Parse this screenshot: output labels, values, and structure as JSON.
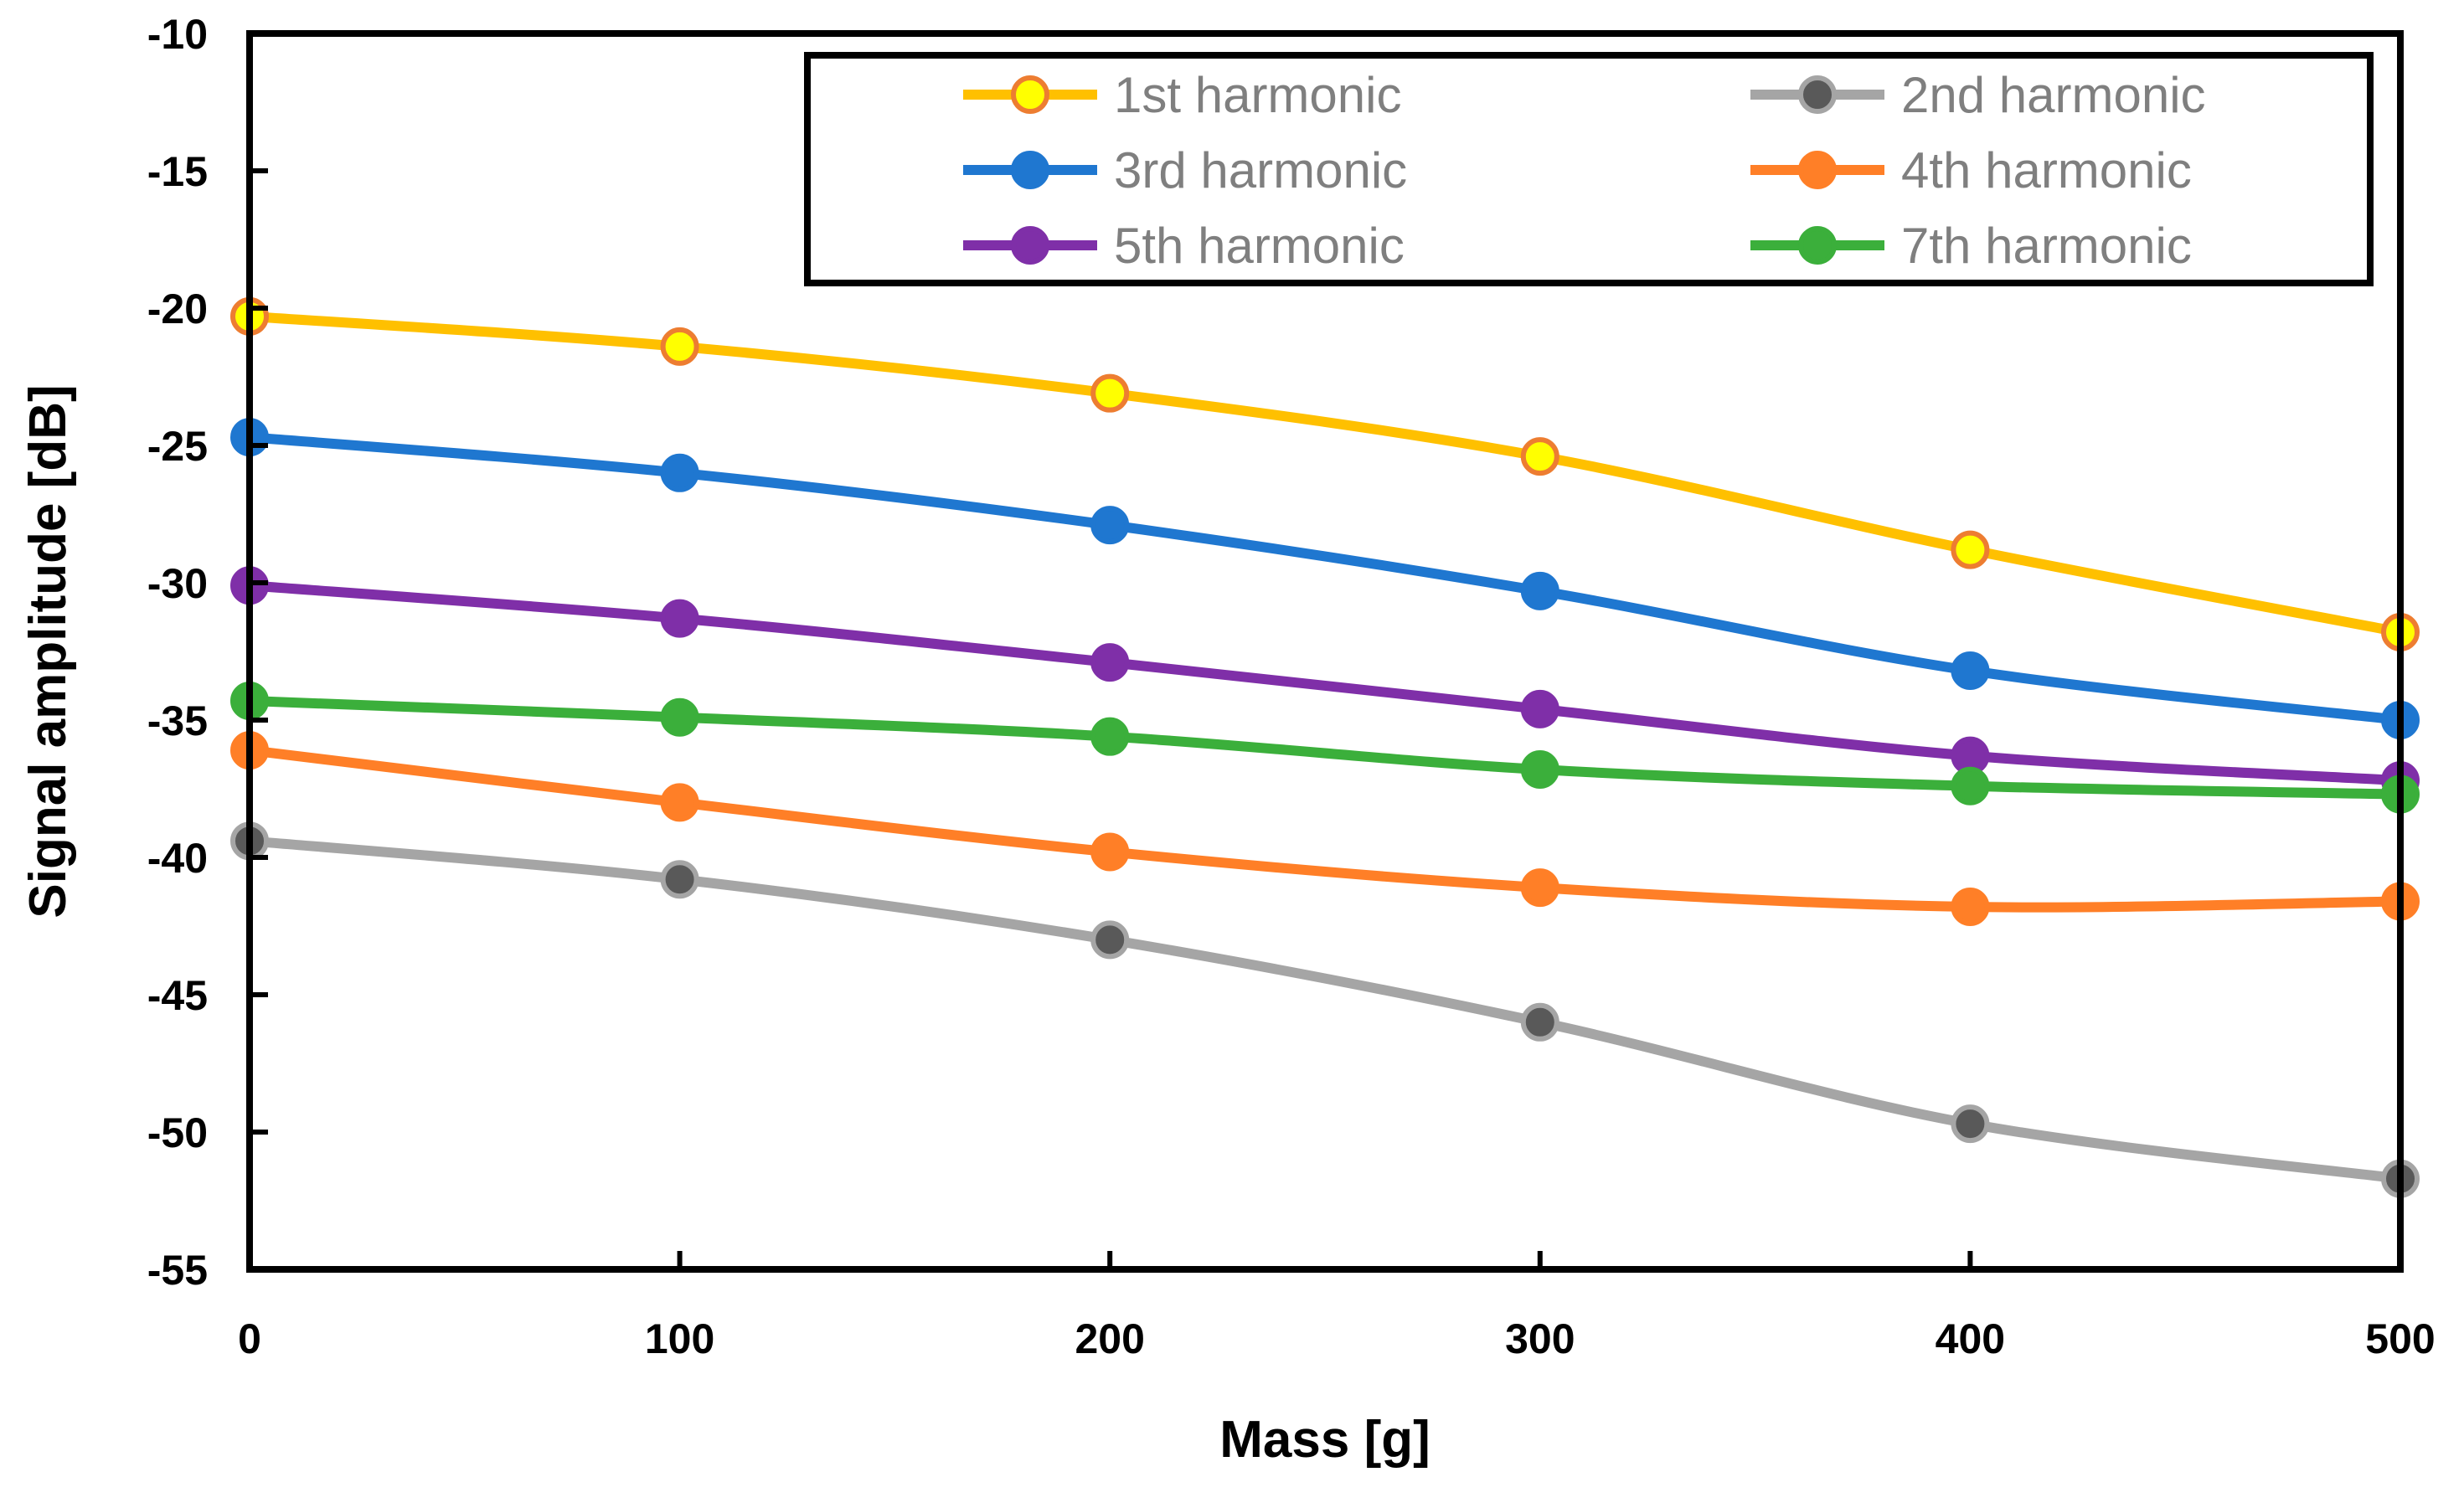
{
  "chart_data": {
    "type": "line",
    "title": "",
    "xlabel": "Mass [g]",
    "ylabel": "Signal amplitude [dB]",
    "xlim": [
      0,
      500
    ],
    "ylim": [
      -55,
      -10
    ],
    "xticks": [
      0,
      100,
      200,
      300,
      400,
      500
    ],
    "yticks": [
      -10,
      -15,
      -20,
      -25,
      -30,
      -35,
      -40,
      -45,
      -50,
      -55
    ],
    "grid": false,
    "legend_position": "top-right",
    "x": [
      0,
      100,
      200,
      300,
      400,
      500
    ],
    "series": [
      {
        "name": "1st harmonic",
        "color": "#FFC000",
        "marker_fill": "#FFFF00",
        "marker_edge": "#ED7D31",
        "values": [
          -20.3,
          -21.4,
          -23.1,
          -25.4,
          -28.8,
          -31.8
        ]
      },
      {
        "name": "2nd harmonic",
        "color": "#A5A5A5",
        "marker_fill": "#595959",
        "marker_edge": "#A5A5A5",
        "values": [
          -39.4,
          -40.8,
          -43.0,
          -46.0,
          -49.7,
          -51.7
        ]
      },
      {
        "name": "3rd harmonic",
        "color": "#1F77D0",
        "marker_fill": "#1F77D0",
        "marker_edge": "#1F77D0",
        "values": [
          -24.7,
          -26.0,
          -27.9,
          -30.3,
          -33.2,
          -35.0
        ]
      },
      {
        "name": "4th harmonic",
        "color": "#FF7F27",
        "marker_fill": "#FF7F27",
        "marker_edge": "#FF7F27",
        "values": [
          -36.1,
          -38.0,
          -39.8,
          -41.1,
          -41.8,
          -41.6
        ]
      },
      {
        "name": "5th harmonic",
        "color": "#7F2FA8",
        "marker_fill": "#7F2FA8",
        "marker_edge": "#7F2FA8",
        "values": [
          -30.1,
          -31.3,
          -32.9,
          -34.6,
          -36.3,
          -37.2
        ]
      },
      {
        "name": "7th harmonic",
        "color": "#3BAF3B",
        "marker_fill": "#3BAF3B",
        "marker_edge": "#3BAF3B",
        "values": [
          -34.3,
          -34.9,
          -35.6,
          -36.8,
          -37.4,
          -37.7
        ]
      }
    ]
  }
}
